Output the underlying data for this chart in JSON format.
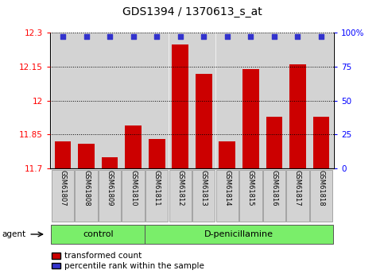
{
  "title": "GDS1394 / 1370613_s_at",
  "samples": [
    "GSM61807",
    "GSM61808",
    "GSM61809",
    "GSM61810",
    "GSM61811",
    "GSM61812",
    "GSM61813",
    "GSM61814",
    "GSM61815",
    "GSM61816",
    "GSM61817",
    "GSM61818"
  ],
  "bar_values": [
    11.82,
    11.81,
    11.75,
    11.89,
    11.83,
    12.25,
    12.12,
    11.82,
    12.14,
    11.93,
    12.16,
    11.93
  ],
  "percentile_values": [
    100,
    100,
    100,
    100,
    100,
    100,
    100,
    100,
    100,
    100,
    100,
    100
  ],
  "bar_color": "#cc0000",
  "percentile_color": "#3333cc",
  "ymin": 11.7,
  "ymax": 12.3,
  "yticks": [
    11.7,
    11.85,
    12.0,
    12.15,
    12.3
  ],
  "ytick_labels": [
    "11.7",
    "11.85",
    "12",
    "12.15",
    "12.3"
  ],
  "y2ticks": [
    0,
    25,
    50,
    75,
    100
  ],
  "y2tick_labels": [
    "0",
    "25",
    "50",
    "75",
    "100%"
  ],
  "n_control": 4,
  "control_label": "control",
  "treatment_label": "D-penicillamine",
  "agent_label": "agent",
  "legend_bar_label": "transformed count",
  "legend_dot_label": "percentile rank within the sample",
  "bar_bg_color": "#d3d3d3",
  "group_bg_color": "#7aee6a",
  "title_fontsize": 10,
  "tick_fontsize": 7.5,
  "sample_fontsize": 6,
  "group_fontsize": 8,
  "legend_fontsize": 7.5
}
